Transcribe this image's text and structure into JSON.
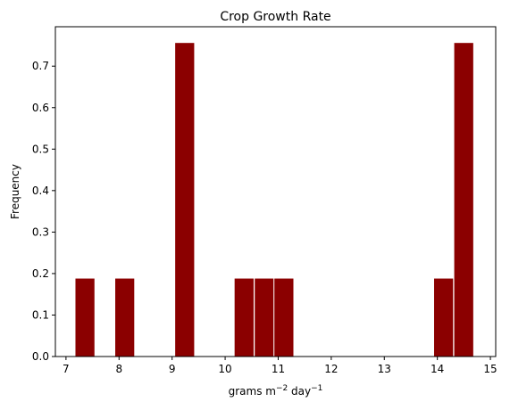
{
  "chart_data": {
    "type": "bar",
    "title": "Crop Growth Rate",
    "xlabel_parts": {
      "base": "grams m",
      "exp1": "−2",
      "mid": " day",
      "exp2": "−1"
    },
    "ylabel": "Frequency",
    "xlim": [
      6.8,
      15.1
    ],
    "ylim": [
      0,
      0.795
    ],
    "xticks": [
      7,
      8,
      9,
      10,
      11,
      12,
      13,
      14,
      15
    ],
    "yticks": [
      0.0,
      0.1,
      0.2,
      0.3,
      0.4,
      0.5,
      0.6,
      0.7
    ],
    "ytick_labels": [
      "0.0",
      "0.1",
      "0.2",
      "0.3",
      "0.4",
      "0.5",
      "0.6",
      "0.7"
    ],
    "bin_width": 0.375,
    "bins": [
      {
        "start": 7.17,
        "value": 0.189
      },
      {
        "start": 7.92,
        "value": 0.189
      },
      {
        "start": 9.05,
        "value": 0.757
      },
      {
        "start": 10.17,
        "value": 0.189
      },
      {
        "start": 10.55,
        "value": 0.189
      },
      {
        "start": 10.92,
        "value": 0.189
      },
      {
        "start": 13.93,
        "value": 0.189
      },
      {
        "start": 14.31,
        "value": 0.757
      }
    ],
    "bar_color": "#8b0000",
    "bar_edge_color": "#ffffff",
    "grid": false
  }
}
